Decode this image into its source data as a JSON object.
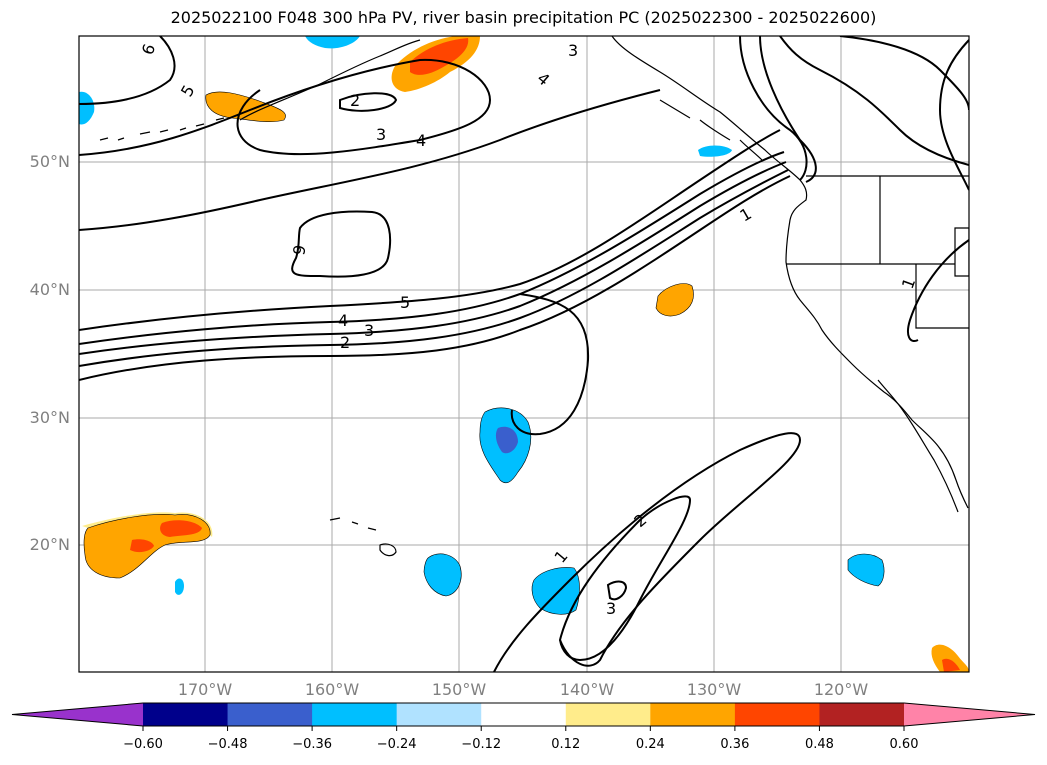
{
  "title": "2025022100 F048 300 hPa PV, river basin precipitation PC (2025022300 - 2025022600)",
  "lat_labels": [
    "50°N",
    "40°N",
    "30°N",
    "20°N"
  ],
  "lon_labels": [
    "170°W",
    "160°W",
    "150°W",
    "140°W",
    "130°W",
    "120°W"
  ],
  "contour_labels": [
    "6",
    "5",
    "2",
    "3",
    "4",
    "3",
    "4",
    "9",
    "5",
    "4",
    "3",
    "2",
    "1",
    "1",
    "2",
    "1",
    "3"
  ],
  "colorbar": {
    "ticks": [
      "−0.60",
      "−0.48",
      "−0.36",
      "−0.24",
      "−0.12",
      "0.12",
      "0.24",
      "0.36",
      "0.48",
      "0.60"
    ],
    "colors": [
      "#9932cc",
      "#00008b",
      "#3a5fcd",
      "#00bfff",
      "#b0e2ff",
      "#ffffff",
      "#ffec8b",
      "#ffa500",
      "#ff4500",
      "#b22222",
      "#ff83a8"
    ]
  },
  "colors": {
    "pv_contour": "#000000",
    "grid": "#aaaaaa",
    "coast": "#000000"
  }
}
